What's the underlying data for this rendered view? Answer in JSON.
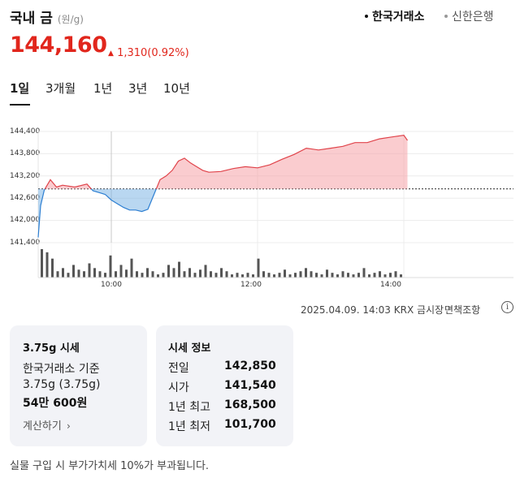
{
  "header": {
    "title": "국내 금",
    "unit": "(원/g)",
    "sources": [
      {
        "label": "한국거래소",
        "active": true
      },
      {
        "label": "신한은행",
        "active": false
      }
    ]
  },
  "price": {
    "value": "144,160",
    "arrow": "▲",
    "change": "1,310",
    "change_pct": "(0.92%)",
    "color": "#e1261c"
  },
  "tabs": [
    {
      "label": "1일",
      "active": true
    },
    {
      "label": "3개월",
      "active": false
    },
    {
      "label": "1년",
      "active": false
    },
    {
      "label": "3년",
      "active": false
    },
    {
      "label": "10년",
      "active": false
    }
  ],
  "chart_data": {
    "type": "area",
    "baseline": 142850,
    "ylim": [
      141400,
      144400
    ],
    "yticks": [
      "144,400",
      "143,800",
      "143,200",
      "142,600",
      "142,000",
      "141,400"
    ],
    "xticks": [
      "10:00",
      "12:00",
      "14:00"
    ],
    "x_range": [
      "09:00",
      "15:30"
    ],
    "up_color": "#f5a3a8",
    "down_color": "#7fb6e6",
    "series": [
      {
        "x": [
          "09:00",
          "09:02",
          "09:05",
          "09:10",
          "09:15",
          "09:20",
          "09:30",
          "09:40",
          "09:45",
          "09:50",
          "09:55",
          "10:00",
          "10:05",
          "10:10",
          "10:15",
          "10:20",
          "10:25",
          "10:30",
          "10:35",
          "10:40",
          "10:45",
          "10:50",
          "10:55",
          "11:00",
          "11:05",
          "11:10",
          "11:15",
          "11:20",
          "11:30",
          "11:40",
          "11:50",
          "12:00",
          "12:10",
          "12:20",
          "12:30",
          "12:40",
          "12:50",
          "13:00",
          "13:10",
          "13:20",
          "13:30",
          "13:40",
          "13:50",
          "14:00",
          "14:03"
        ],
        "values": [
          141540,
          142400,
          142820,
          143100,
          142900,
          142950,
          142900,
          142980,
          142800,
          142750,
          142700,
          142550,
          142450,
          142350,
          142280,
          142280,
          142240,
          142300,
          142700,
          143100,
          143200,
          143350,
          143600,
          143680,
          143550,
          143450,
          143350,
          143300,
          143320,
          143400,
          143450,
          143420,
          143500,
          143650,
          143780,
          143950,
          143900,
          143950,
          144000,
          144100,
          144100,
          144200,
          144250,
          144300,
          144160
        ]
      }
    ],
    "volume": [
      18,
      16,
      12,
      4,
      6,
      3,
      8,
      5,
      4,
      9,
      6,
      4,
      3,
      14,
      4,
      8,
      5,
      12,
      4,
      3,
      6,
      4,
      2,
      3,
      8,
      6,
      10,
      4,
      6,
      3,
      5,
      8,
      4,
      3,
      6,
      4,
      2,
      3,
      2,
      3,
      2,
      12,
      4,
      3,
      2,
      3,
      5,
      2,
      3,
      4,
      6,
      4,
      3,
      2,
      5,
      3,
      2,
      4,
      3,
      2,
      3,
      6,
      2,
      3,
      4,
      2,
      3,
      4,
      2
    ]
  },
  "timestamp": "2025.04.09. 14:03 KRX 금시장",
  "disclaimer": "면책조항",
  "card_left": {
    "title": "3.75g 시세",
    "basis": "한국거래소 기준",
    "weight": "3.75g (3.75g)",
    "price": "54만 600원",
    "calc": "계산하기"
  },
  "card_right": {
    "title": "시세 정보",
    "rows": [
      {
        "label": "전일",
        "value": "142,850"
      },
      {
        "label": "시가",
        "value": "141,540"
      },
      {
        "label": "1년 최고",
        "value": "168,500"
      },
      {
        "label": "1년 최저",
        "value": "101,700"
      }
    ]
  },
  "footer": "실물 구입 시 부가가치세 10%가 부과됩니다."
}
